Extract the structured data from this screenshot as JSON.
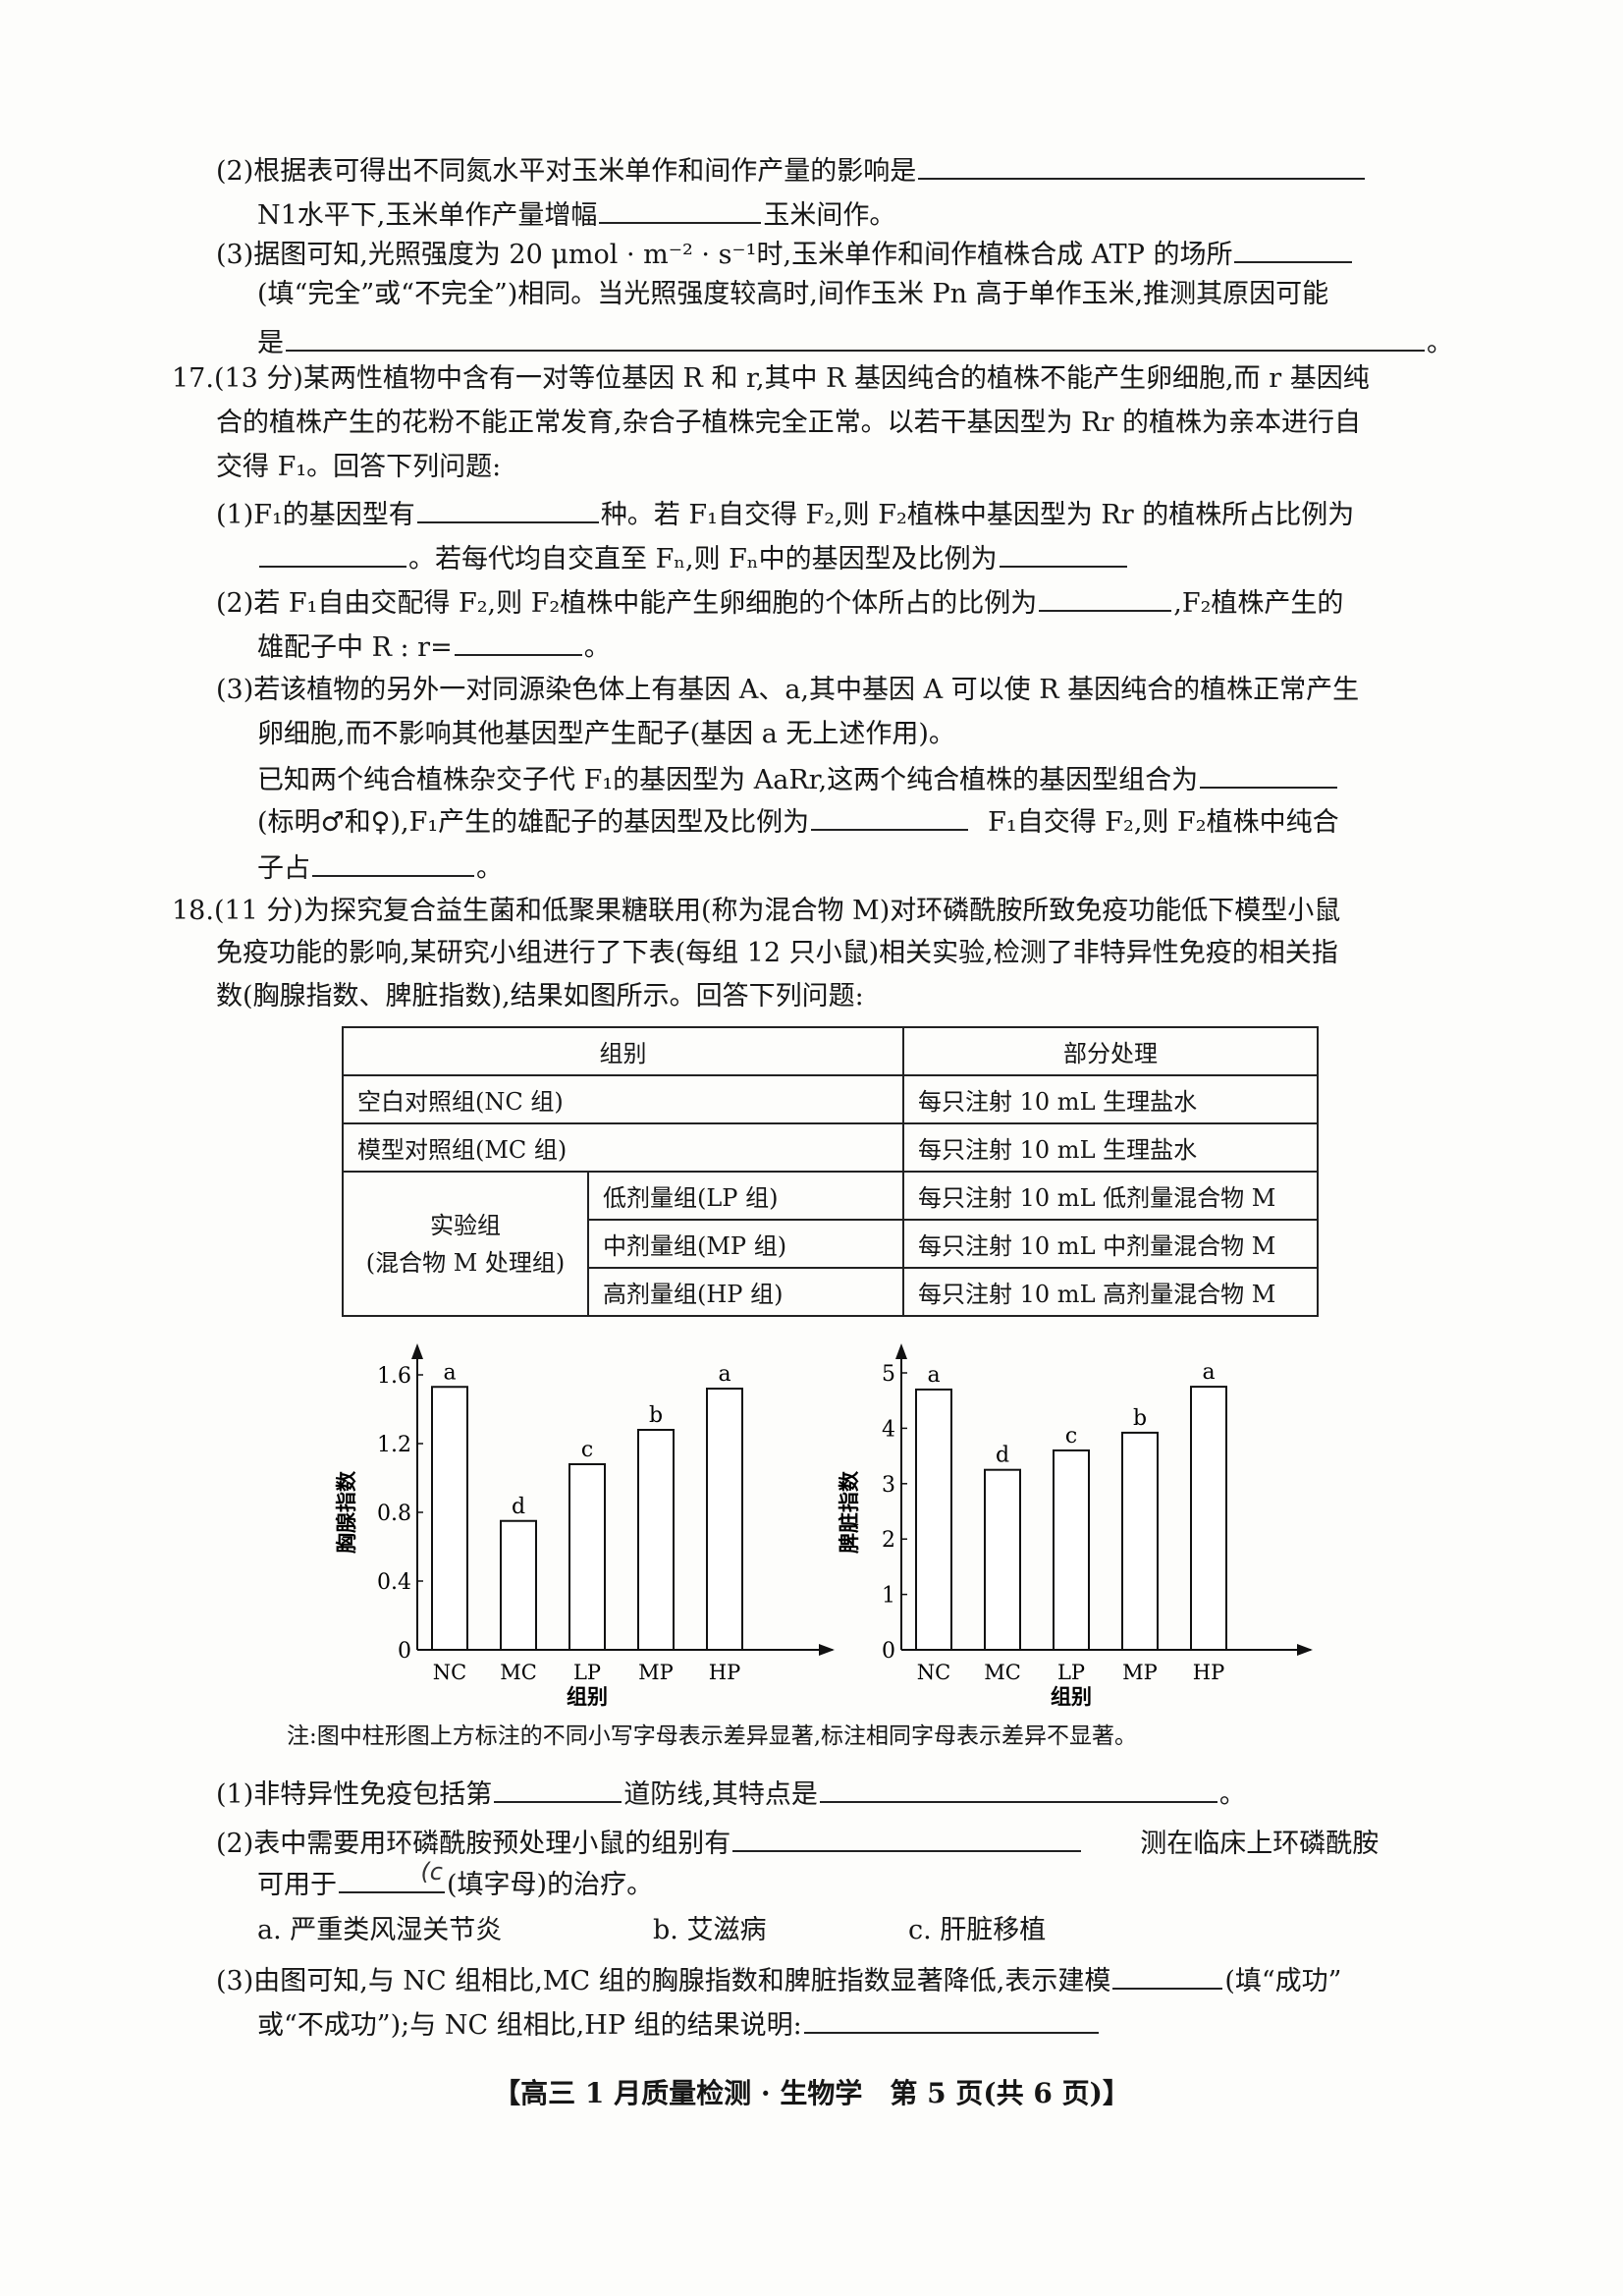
{
  "q16": {
    "p2_a": "(2)根据表可得出不同氮水平对玉米单作和间作产量的影响是",
    "p2_b1": "N1水平下,玉米单作产量增幅",
    "p2_b2": "玉米间作。",
    "p3_a": "(3)据图可知,光照强度为 20 μmol · m⁻² · s⁻¹时,玉米单作和间作植株合成 ATP 的场所",
    "p3_b": "(填“完全”或“不完全”)相同。当光照强度较高时,间作玉米 Pn 高于单作玉米,推测其原因可能",
    "p3_c1": "是",
    "p3_c2": "。"
  },
  "q17": {
    "l1": "17.(13 分)某两性植物中含有一对等位基因 R 和 r,其中 R 基因纯合的植株不能产生卵细胞,而 r 基因纯",
    "l2": "合的植株产生的花粉不能正常发育,杂合子植株完全正常。以若干基因型为 Rr 的植株为亲本进行自",
    "l3": "交得 F₁。回答下列问题:",
    "p1_a1": "(1)F₁的基因型有",
    "p1_a2": "种。若 F₁自交得 F₂,则 F₂植株中基因型为 Rr 的植株所占比例为",
    "p1_b1": "。若每代均自交直至 Fₙ,则 Fₙ中的基因型及比例为",
    "p2_a1": "(2)若 F₁自由交配得 F₂,则 F₂植株中能产生卵细胞的个体所占的比例为",
    "p2_a2": ",F₂植株产生的",
    "p2_b1": "雄配子中 R : r=",
    "p2_b2": "。",
    "p3_a": "(3)若该植物的另外一对同源染色体上有基因 A、a,其中基因 A 可以使 R 基因纯合的植株正常产生",
    "p3_b": "卵细胞,而不影响其他基因型产生配子(基因 a 无上述作用)。",
    "p3_c": "已知两个纯合植株杂交子代 F₁的基因型为 AaRr,这两个纯合植株的基因型组合为",
    "p3_d1": "(标明♂和♀),F₁产生的雄配子的基因型及比例为",
    "p3_d2": "F₁自交得 F₂,则 F₂植株中纯合",
    "p3_e1": "子占",
    "p3_e2": "。"
  },
  "q18": {
    "l1": "18.(11 分)为探究复合益生菌和低聚果糖联用(称为混合物 M)对环磷酰胺所致免疫功能低下模型小鼠",
    "l2": "免疫功能的影响,某研究小组进行了下表(每组 12 只小鼠)相关实验,检测了非特异性免疫的相关指",
    "l3": "数(胸腺指数、脾脏指数),结果如图所示。回答下列问题:",
    "note": "注:图中柱形图上方标注的不同小写字母表示差异显著,标注相同字母表示差异不显著。",
    "p1_a": "(1)非特异性免疫包括第",
    "p1_b": "道防线,其特点是",
    "p1_c": "。",
    "p2_a": "(2)表中需要用环磷酰胺预处理小鼠的组别有",
    "p2_b": "测在临床上环磷酰胺",
    "p2_c1": "可用于",
    "p2_handwritten": "(c",
    "p2_c2": "(填字母)的治疗。",
    "opt_a": "a. 严重类风湿关节炎",
    "opt_b": "b. 艾滋病",
    "opt_c": "c. 肝脏移植",
    "p3_a1": "(3)由图可知,与 NC 组相比,MC 组的胸腺指数和脾脏指数显著降低,表示建模",
    "p3_a2": "(填“成功”",
    "p3_b": "或“不成功”);与 NC 组相比,HP 组的结果说明:"
  },
  "table": {
    "headers": [
      "组别",
      "部分处理"
    ],
    "rows": [
      {
        "group": "空白对照组(NC 组)",
        "treatment": "每只注射 10 mL 生理盐水"
      },
      {
        "group": "模型对照组(MC 组)",
        "treatment": "每只注射 10 mL 生理盐水"
      }
    ],
    "exp_group": "实验组",
    "exp_group_sub": "(混合物 M 处理组)",
    "exp_rows": [
      {
        "group": "低剂量组(LP 组)",
        "treatment": "每只注射 10 mL 低剂量混合物 M"
      },
      {
        "group": "中剂量组(MP 组)",
        "treatment": "每只注射 10 mL 中剂量混合物 M"
      },
      {
        "group": "高剂量组(HP 组)",
        "treatment": "每只注射 10 mL 高剂量混合物 M"
      }
    ]
  },
  "chart_data": [
    {
      "type": "bar",
      "categories": [
        "NC",
        "MC",
        "LP",
        "MP",
        "HP"
      ],
      "values": [
        1.53,
        0.75,
        1.08,
        1.28,
        1.52
      ],
      "labels": [
        "a",
        "d",
        "c",
        "b",
        "a"
      ],
      "xlabel": "组别",
      "ylabel": "胸腺指数",
      "yticks": [
        "0",
        "0.4",
        "0.8",
        "1.2",
        "1.6"
      ],
      "ylim": [
        0,
        1.6
      ],
      "grid": false,
      "bar_fill": "#ffffff"
    },
    {
      "type": "bar",
      "categories": [
        "NC",
        "MC",
        "LP",
        "MP",
        "HP"
      ],
      "values": [
        4.7,
        3.25,
        3.6,
        3.92,
        4.75
      ],
      "labels": [
        "a",
        "d",
        "c",
        "b",
        "a"
      ],
      "xlabel": "组别",
      "ylabel": "脾脏指数",
      "yticks": [
        "0",
        "1",
        "2",
        "3",
        "4",
        "5"
      ],
      "ylim": [
        0,
        5
      ],
      "grid": false,
      "bar_fill": "#ffffff"
    }
  ],
  "footer": "【高三 1 月质量检测 · 生物学　第 5 页(共 6 页)】"
}
